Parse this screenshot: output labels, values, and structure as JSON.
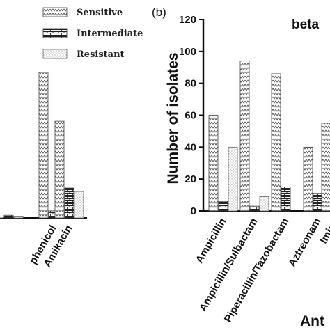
{
  "panel_label": "(b)",
  "panel_b_title": "beta",
  "legend": {
    "items": [
      {
        "label": "Sensitive",
        "pattern": "sensitive"
      },
      {
        "label": "Intermediate",
        "pattern": "intermediate"
      },
      {
        "label": "Resistant",
        "pattern": "resistant"
      }
    ]
  },
  "chart_data": [
    {
      "type": "bar",
      "panel": "a",
      "categories": [
        "",
        "phenicol",
        "Amikacin"
      ],
      "series": [
        {
          "name": "Sensitive",
          "values": [
            0.6,
            83,
            55
          ]
        },
        {
          "name": "Intermediate",
          "values": [
            1.5,
            4,
            17
          ]
        },
        {
          "name": "Resistant",
          "values": [
            1,
            3,
            15
          ]
        }
      ],
      "ylim": [
        0,
        120
      ]
    },
    {
      "type": "bar",
      "panel": "b",
      "title": "beta",
      "categories": [
        "Ampicillin",
        "Ampicillin/Sulbactam",
        "Piperacillin/Tazobactam",
        "Aztreonam",
        "Imipe",
        ""
      ],
      "series": [
        {
          "name": "Sensitive",
          "values": [
            60,
            94,
            86,
            40,
            55,
            0
          ]
        },
        {
          "name": "Intermediate",
          "values": [
            6,
            3,
            15,
            11,
            0,
            0
          ]
        },
        {
          "name": "Resistant",
          "values": [
            40,
            9,
            0,
            5,
            0,
            0
          ]
        }
      ],
      "ylabel": "Number of isolates",
      "xlabel": "Ant",
      "ylim": [
        0,
        120
      ],
      "yticks": [
        0,
        20,
        40,
        60,
        80,
        100,
        120
      ]
    }
  ]
}
